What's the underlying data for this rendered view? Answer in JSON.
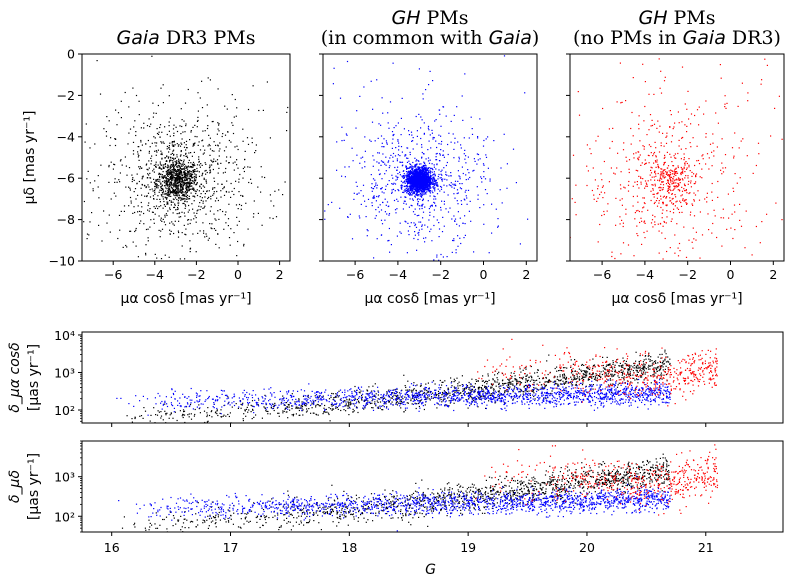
{
  "chart_data": [
    {
      "type": "scatter",
      "title_it": "Gaia",
      "title_rest": " DR3 PMs",
      "xlabel": "μα cosδ [mas yr⁻¹]",
      "ylabel": "μδ [mas yr⁻¹]",
      "xlim": [
        -7.5,
        2.5
      ],
      "ylim": [
        -10,
        0
      ],
      "xticks": [
        -6,
        -4,
        -2,
        0,
        2
      ],
      "yticks": [
        0,
        -2,
        -4,
        -6,
        -8,
        -10
      ],
      "series": [
        {
          "name": "Gaia DR3",
          "color": "#000000",
          "center": [
            -2.9,
            -6.1
          ],
          "core_spread": 0.5,
          "halo_spread": 1.7,
          "n_core": 700,
          "n_halo": 900
        }
      ]
    },
    {
      "type": "scatter",
      "title_line1_it": "GH",
      "title_line1_rest": " PMs",
      "title_line2_pre": "(in common with ",
      "title_line2_it": "Gaia",
      "title_line2_post": ")",
      "xlabel": "μα cosδ [mas yr⁻¹]",
      "xlim": [
        -7.5,
        2.5
      ],
      "ylim": [
        -10,
        0
      ],
      "xticks": [
        -6,
        -4,
        -2,
        0,
        2
      ],
      "series": [
        {
          "name": "GH common",
          "color": "#0000ff",
          "center": [
            -3.0,
            -6.1
          ],
          "core_spread": 0.3,
          "halo_spread": 1.6,
          "n_core": 1700,
          "n_halo": 700
        }
      ]
    },
    {
      "type": "scatter",
      "title_line1_it": "GH",
      "title_line1_rest": " PMs",
      "title_line2_pre": "(no PMs in ",
      "title_line2_it": "Gaia",
      "title_line2_post": " DR3)",
      "xlabel": "μα cosδ [mas yr⁻¹]",
      "xlim": [
        -7.5,
        2.5
      ],
      "ylim": [
        -10,
        0
      ],
      "xticks": [
        -6,
        -4,
        -2,
        0,
        2
      ],
      "series": [
        {
          "name": "GH only",
          "color": "#ff0000",
          "center": [
            -2.9,
            -6.1
          ],
          "core_spread": 0.6,
          "halo_spread": 2.0,
          "n_core": 250,
          "n_halo": 450
        }
      ]
    },
    {
      "type": "scatter",
      "ylabel_line1": "δ_μα cosδ",
      "ylabel_line2": "[μas yr⁻¹]",
      "yscale": "log",
      "ylim": [
        45,
        12000
      ],
      "yticks": [
        "10²",
        "10³",
        "10⁴"
      ],
      "ytick_values": [
        100,
        1000,
        10000
      ],
      "xlim": [
        15.75,
        21.65
      ],
      "series": [
        {
          "name": "Gaia",
          "color": "#000000",
          "g_range": [
            16.0,
            20.7
          ],
          "trend": [
            [
              16.0,
              50
            ],
            [
              18.0,
              160
            ],
            [
              19.0,
              300
            ],
            [
              19.5,
              500
            ],
            [
              20.0,
              850
            ],
            [
              20.7,
              1600
            ]
          ]
        },
        {
          "name": "GH common",
          "color": "#0000ff",
          "g_range": [
            16.0,
            20.7
          ],
          "trend": [
            [
              16.0,
              160
            ],
            [
              18.0,
              210
            ],
            [
              19.0,
              230
            ],
            [
              20.0,
              250
            ],
            [
              20.7,
              280
            ]
          ]
        },
        {
          "name": "GH only",
          "color": "#ff0000",
          "g_range": [
            19.0,
            21.1
          ],
          "trend": [
            [
              19.0,
              1200
            ],
            [
              20.0,
              1000
            ],
            [
              20.6,
              700
            ],
            [
              21.0,
              1200
            ]
          ]
        }
      ]
    },
    {
      "type": "scatter",
      "ylabel_line1": "δ_μδ",
      "ylabel_line2": "[μas yr⁻¹]",
      "yscale": "log",
      "ylim": [
        40,
        8000
      ],
      "yticks": [
        "10²",
        "10³"
      ],
      "ytick_values": [
        100,
        1000
      ],
      "xlabel": "G",
      "xlim": [
        15.75,
        21.65
      ],
      "xticks": [
        16,
        17,
        18,
        19,
        20,
        21
      ],
      "series": [
        {
          "name": "Gaia",
          "color": "#000000",
          "g_range": [
            16.0,
            20.7
          ],
          "trend": [
            [
              16.0,
              45
            ],
            [
              18.0,
              150
            ],
            [
              19.0,
              280
            ],
            [
              19.5,
              450
            ],
            [
              20.0,
              800
            ],
            [
              20.7,
              1500
            ]
          ]
        },
        {
          "name": "GH common",
          "color": "#0000ff",
          "g_range": [
            16.0,
            20.7
          ],
          "trend": [
            [
              16.0,
              150
            ],
            [
              18.0,
              190
            ],
            [
              19.0,
              220
            ],
            [
              20.0,
              240
            ],
            [
              20.7,
              270
            ]
          ]
        },
        {
          "name": "GH only",
          "color": "#ff0000",
          "g_range": [
            19.0,
            21.1
          ],
          "trend": [
            [
              19.0,
              1000
            ],
            [
              20.0,
              900
            ],
            [
              20.6,
              600
            ],
            [
              21.0,
              1100
            ]
          ]
        }
      ]
    }
  ]
}
